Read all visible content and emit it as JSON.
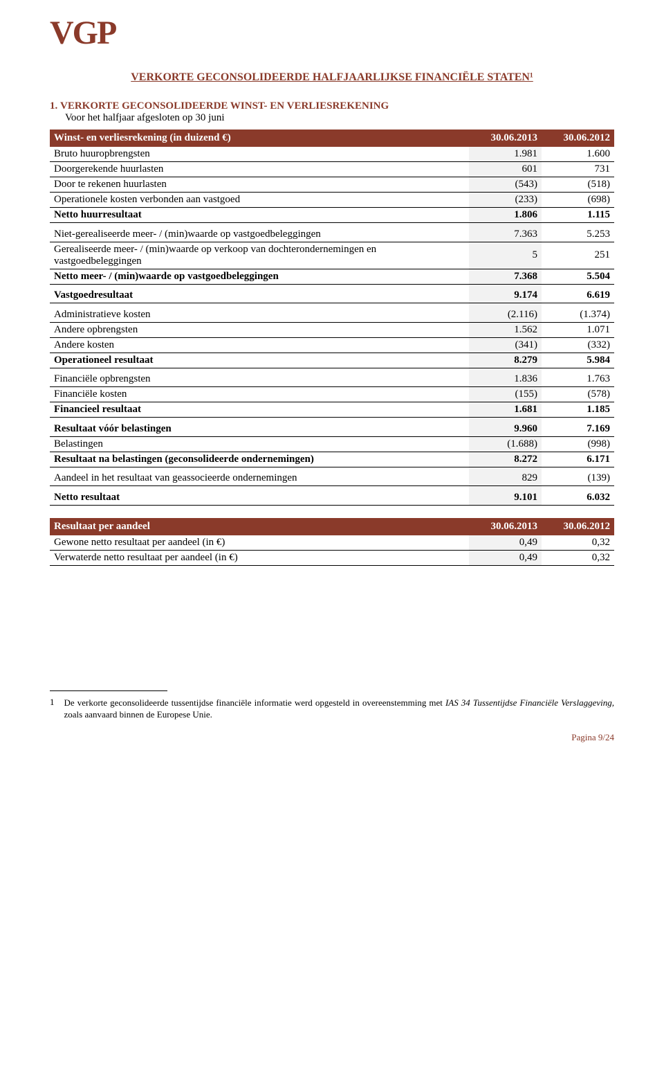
{
  "logo": "VGP",
  "main_title": "VERKORTE GECONSOLIDEERDE HALFJAARLIJKSE FINANCIËLE STATEN¹",
  "section": {
    "number": "1.",
    "title": "VERKORTE GECONSOLIDEERDE WINST- EN VERLIESREKENING",
    "desc": "Voor het halfjaar afgesloten op 30 juni"
  },
  "table1": {
    "header": {
      "label": "Winst- en verliesrekening (in duizend €)",
      "c1": "30.06.2013",
      "c2": "30.06.2012"
    },
    "groups": [
      [
        {
          "label": "Bruto huuropbrengsten",
          "v1": "1.981",
          "v2": "1.600",
          "bold": false
        },
        {
          "label": "Doorgerekende huurlasten",
          "v1": "601",
          "v2": "731",
          "bold": false
        },
        {
          "label": "Door te rekenen huurlasten",
          "v1": "(543)",
          "v2": "(518)",
          "bold": false
        },
        {
          "label": "Operationele kosten verbonden aan vastgoed",
          "v1": "(233)",
          "v2": "(698)",
          "bold": false
        },
        {
          "label": "Netto huurresultaat",
          "v1": "1.806",
          "v2": "1.115",
          "bold": true
        }
      ],
      [
        {
          "label": "Niet-gerealiseerde meer- / (min)waarde op vastgoedbeleggingen",
          "v1": "7.363",
          "v2": "5.253",
          "bold": false
        },
        {
          "label": "Gerealiseerde meer- / (min)waarde op verkoop van dochterondernemingen en vastgoedbeleggingen",
          "v1": "5",
          "v2": "251",
          "bold": false
        },
        {
          "label": "Netto meer- / (min)waarde op vastgoedbeleggingen",
          "v1": "7.368",
          "v2": "5.504",
          "bold": true
        }
      ],
      [
        {
          "label": "Vastgoedresultaat",
          "v1": "9.174",
          "v2": "6.619",
          "bold": true
        }
      ],
      [
        {
          "label": "Administratieve kosten",
          "v1": "(2.116)",
          "v2": "(1.374)",
          "bold": false
        },
        {
          "label": "Andere opbrengsten",
          "v1": "1.562",
          "v2": "1.071",
          "bold": false
        },
        {
          "label": "Andere kosten",
          "v1": "(341)",
          "v2": "(332)",
          "bold": false
        },
        {
          "label": "Operationeel resultaat",
          "v1": "8.279",
          "v2": "5.984",
          "bold": true
        }
      ],
      [
        {
          "label": "Financiële opbrengsten",
          "v1": "1.836",
          "v2": "1.763",
          "bold": false
        },
        {
          "label": "Financiële kosten",
          "v1": "(155)",
          "v2": "(578)",
          "bold": false
        },
        {
          "label": "Financieel resultaat",
          "v1": "1.681",
          "v2": "1.185",
          "bold": true
        }
      ],
      [
        {
          "label": "Resultaat vóór belastingen",
          "v1": "9.960",
          "v2": "7.169",
          "bold": true
        },
        {
          "label": "Belastingen",
          "v1": "(1.688)",
          "v2": "(998)",
          "bold": false
        },
        {
          "label": "Resultaat na belastingen (geconsolideerde ondernemingen)",
          "v1": "8.272",
          "v2": "6.171",
          "bold": true
        }
      ],
      [
        {
          "label": "Aandeel in het resultaat van geassocieerde ondernemingen",
          "v1": "829",
          "v2": "(139)",
          "bold": false
        }
      ],
      [
        {
          "label": "Netto resultaat",
          "v1": "9.101",
          "v2": "6.032",
          "bold": true
        }
      ]
    ]
  },
  "table2": {
    "header": {
      "label": "Resultaat per aandeel",
      "c1": "30.06.2013",
      "c2": "30.06.2012"
    },
    "rows": [
      {
        "label": "Gewone netto resultaat per aandeel (in €)",
        "v1": "0,49",
        "v2": "0,32"
      },
      {
        "label": "Verwaterde netto resultaat per aandeel (in €)",
        "v1": "0,49",
        "v2": "0,32"
      }
    ]
  },
  "footnote": {
    "num": "1",
    "text_a": "De verkorte geconsolideerde tussentijdse financiële informatie werd opgesteld in overeenstemming met ",
    "text_b": "IAS 34 Tussentijdse Financiële Verslaggeving,",
    "text_c": " zoals aanvaard binnen de Europese Unie."
  },
  "page_num": "Pagina 9/24",
  "colors": {
    "brand": "#8a3a2a",
    "shade": "#f2f2f2"
  }
}
